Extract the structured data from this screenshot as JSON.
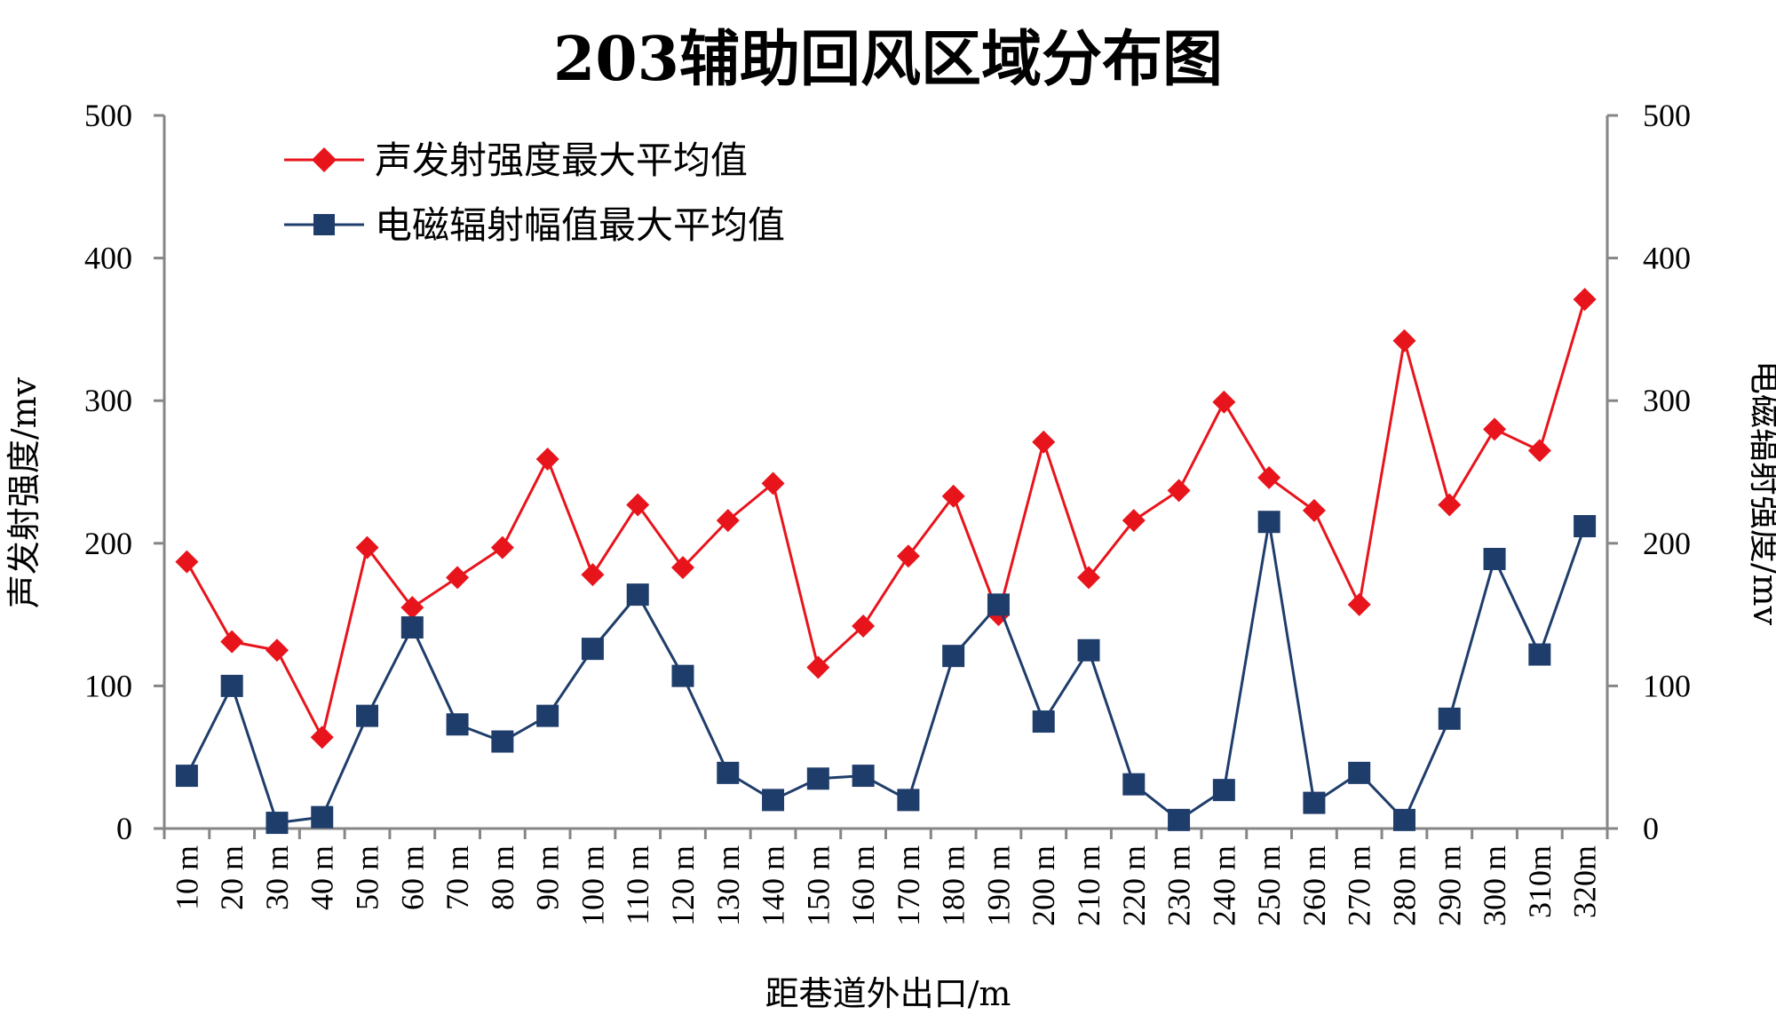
{
  "chart_data": {
    "type": "line",
    "title": "203辅助回风区域分布图",
    "xlabel": "距巷道外出口/m",
    "ylabel_left": "声发射强度/mv",
    "ylabel_right": "电磁辐射强度/mv",
    "ylim": [
      0,
      500
    ],
    "ylim_right": [
      0,
      500
    ],
    "yticks": [
      "0",
      "100",
      "200",
      "300",
      "400",
      "500"
    ],
    "yticks_right": [
      "0",
      "100",
      "200",
      "300",
      "400",
      "500"
    ],
    "categories": [
      "10 m",
      "20 m",
      "30 m",
      "40 m",
      "50 m",
      "60 m",
      "70 m",
      "80 m",
      "90 m",
      "100 m",
      "110 m",
      "120 m",
      "130 m",
      "140 m",
      "150 m",
      "160 m",
      "170 m",
      "180 m",
      "190 m",
      "200 m",
      "210 m",
      "220 m",
      "230 m",
      "240 m",
      "250 m",
      "260 m",
      "270 m",
      "280 m",
      "290 m",
      "300 m",
      "310m",
      "320m"
    ],
    "series": [
      {
        "name": "声发射强度最大平均值",
        "axis": "left",
        "color": "#e8141c",
        "marker": "diamond",
        "values": [
          187,
          131,
          125,
          64,
          197,
          155,
          176,
          197,
          259,
          178,
          227,
          183,
          216,
          242,
          113,
          142,
          191,
          233,
          150,
          271,
          176,
          216,
          237,
          299,
          246,
          223,
          157,
          342,
          227,
          280,
          265,
          371
        ]
      },
      {
        "name": "电磁辐射幅值最大平均值",
        "axis": "right",
        "color": "#1f3d6b",
        "marker": "square",
        "values": [
          37,
          100,
          4,
          8,
          79,
          141,
          73,
          61,
          79,
          126,
          164,
          107,
          39,
          20,
          35,
          37,
          20,
          121,
          157,
          75,
          125,
          31,
          6,
          27,
          215,
          18,
          39,
          6,
          77,
          189,
          122,
          212
        ]
      }
    ]
  }
}
